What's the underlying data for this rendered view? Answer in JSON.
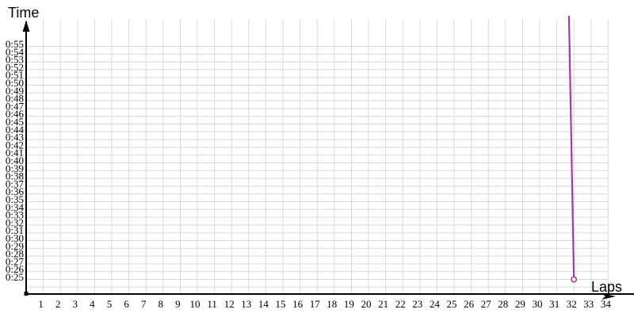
{
  "chart_data": {
    "type": "line",
    "title": "",
    "xlabel": "Laps",
    "ylabel": "Time",
    "grid": true,
    "legend": "none",
    "background_color": "#ffffff",
    "grid_color": "#d8d8d8",
    "axis_color": "#000000",
    "x_ticks": [
      "1",
      "2",
      "3",
      "4",
      "5",
      "6",
      "7",
      "8",
      "9",
      "10",
      "11",
      "12",
      "13",
      "14",
      "15",
      "16",
      "17",
      "18",
      "19",
      "20",
      "21",
      "22",
      "23",
      "24",
      "25",
      "26",
      "27",
      "28",
      "29",
      "30",
      "31",
      "32",
      "33",
      "34"
    ],
    "y_ticks": [
      "0:25",
      "0:26",
      "0:27",
      "0:28",
      "0:29",
      "0:30",
      "0:31",
      "0:32",
      "0:33",
      "0:34",
      "0:35",
      "0:36",
      "0:37",
      "0:38",
      "0:39",
      "0:40",
      "0:41",
      "0:42",
      "0:43",
      "0:44",
      "0:45",
      "0:46",
      "0:47",
      "0:48",
      "0:49",
      "0:50",
      "0:51",
      "0:52",
      "0:53",
      "0:54",
      "0:55"
    ],
    "x_range_laps": [
      0,
      34
    ],
    "y_range_labeled": [
      "0:25",
      "0:55"
    ],
    "series": [
      {
        "name": "lap-time-series",
        "color": "#a13da1",
        "marker": "open-circle",
        "marker_fill": "#ffffff",
        "visible_points": [
          {
            "lap": 32,
            "time": "0:25"
          }
        ],
        "offscreen_segment": {
          "enters_at_lap": 31.71,
          "description": "line enters from above the chart top between laps 31 and 32; previous lap time is above the 0:55 scale (clipped)"
        }
      }
    ]
  }
}
